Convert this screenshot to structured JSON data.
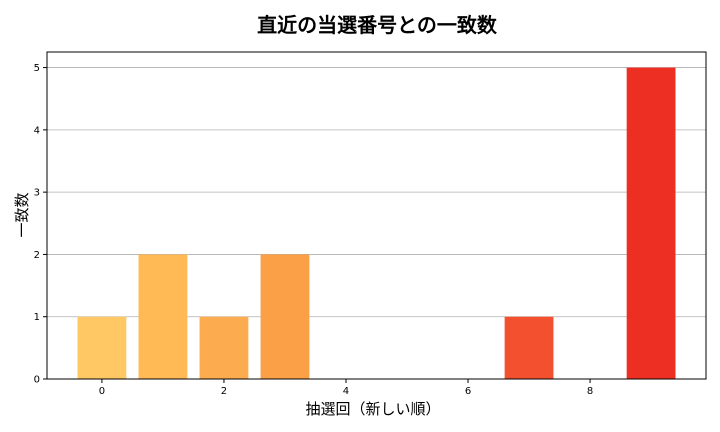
{
  "chart_data": {
    "type": "bar",
    "title": "直近の当選番号との一致数",
    "xlabel": "抽選回（新しい順）",
    "ylabel": "一致数",
    "x": [
      0,
      1,
      2,
      3,
      4,
      5,
      6,
      7,
      8,
      9
    ],
    "values": [
      1,
      2,
      1,
      2,
      0,
      0,
      0,
      1,
      0,
      5
    ],
    "xticks": [
      0,
      2,
      4,
      6,
      8
    ],
    "yticks": [
      0,
      1,
      2,
      3,
      4,
      5
    ],
    "xlim": [
      -0.9,
      9.9
    ],
    "ylim": [
      0,
      5.25
    ],
    "grid": "y",
    "bar_colors": [
      "#FFC864",
      "#FFBA55",
      "#FCAC4E",
      "#FBA046",
      "#F89040",
      "#F7803A",
      "#F46634",
      "#F2502E",
      "#EF3C28",
      "#EC2F22"
    ]
  }
}
